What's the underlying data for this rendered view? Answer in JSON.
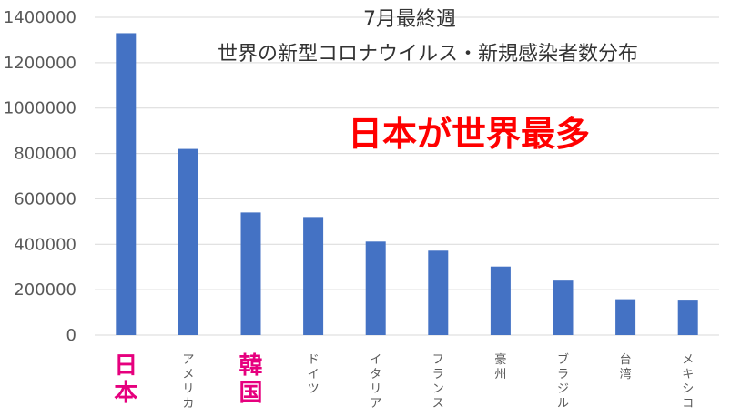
{
  "chart_data": {
    "type": "bar",
    "title_line1": "7月最終週",
    "title_line2": "世界の新型コロナウイルス・新規感染者数分布",
    "headline": "日本が世界最多",
    "categories": [
      "日本",
      "アメリカ",
      "韓国",
      "ドイツ",
      "イタリア",
      "フランス",
      "豪州",
      "ブラジル",
      "台湾",
      "メキシコ"
    ],
    "highlighted_categories": [
      "日本",
      "韓国"
    ],
    "values": [
      1330000,
      820000,
      540000,
      520000,
      412000,
      372000,
      302000,
      240000,
      158000,
      152000
    ],
    "ylim": [
      0,
      1400000
    ],
    "yticks": [
      "0",
      "200000",
      "400000",
      "600000",
      "800000",
      "1000000",
      "1200000",
      "1400000"
    ],
    "xlabel": "",
    "ylabel": "",
    "grid": true,
    "colors": {
      "bar": "#4472C4",
      "headline": "#FF0000",
      "highlight_label": "#E6007E",
      "label": "#595959",
      "grid": "#D9D9D9"
    }
  }
}
